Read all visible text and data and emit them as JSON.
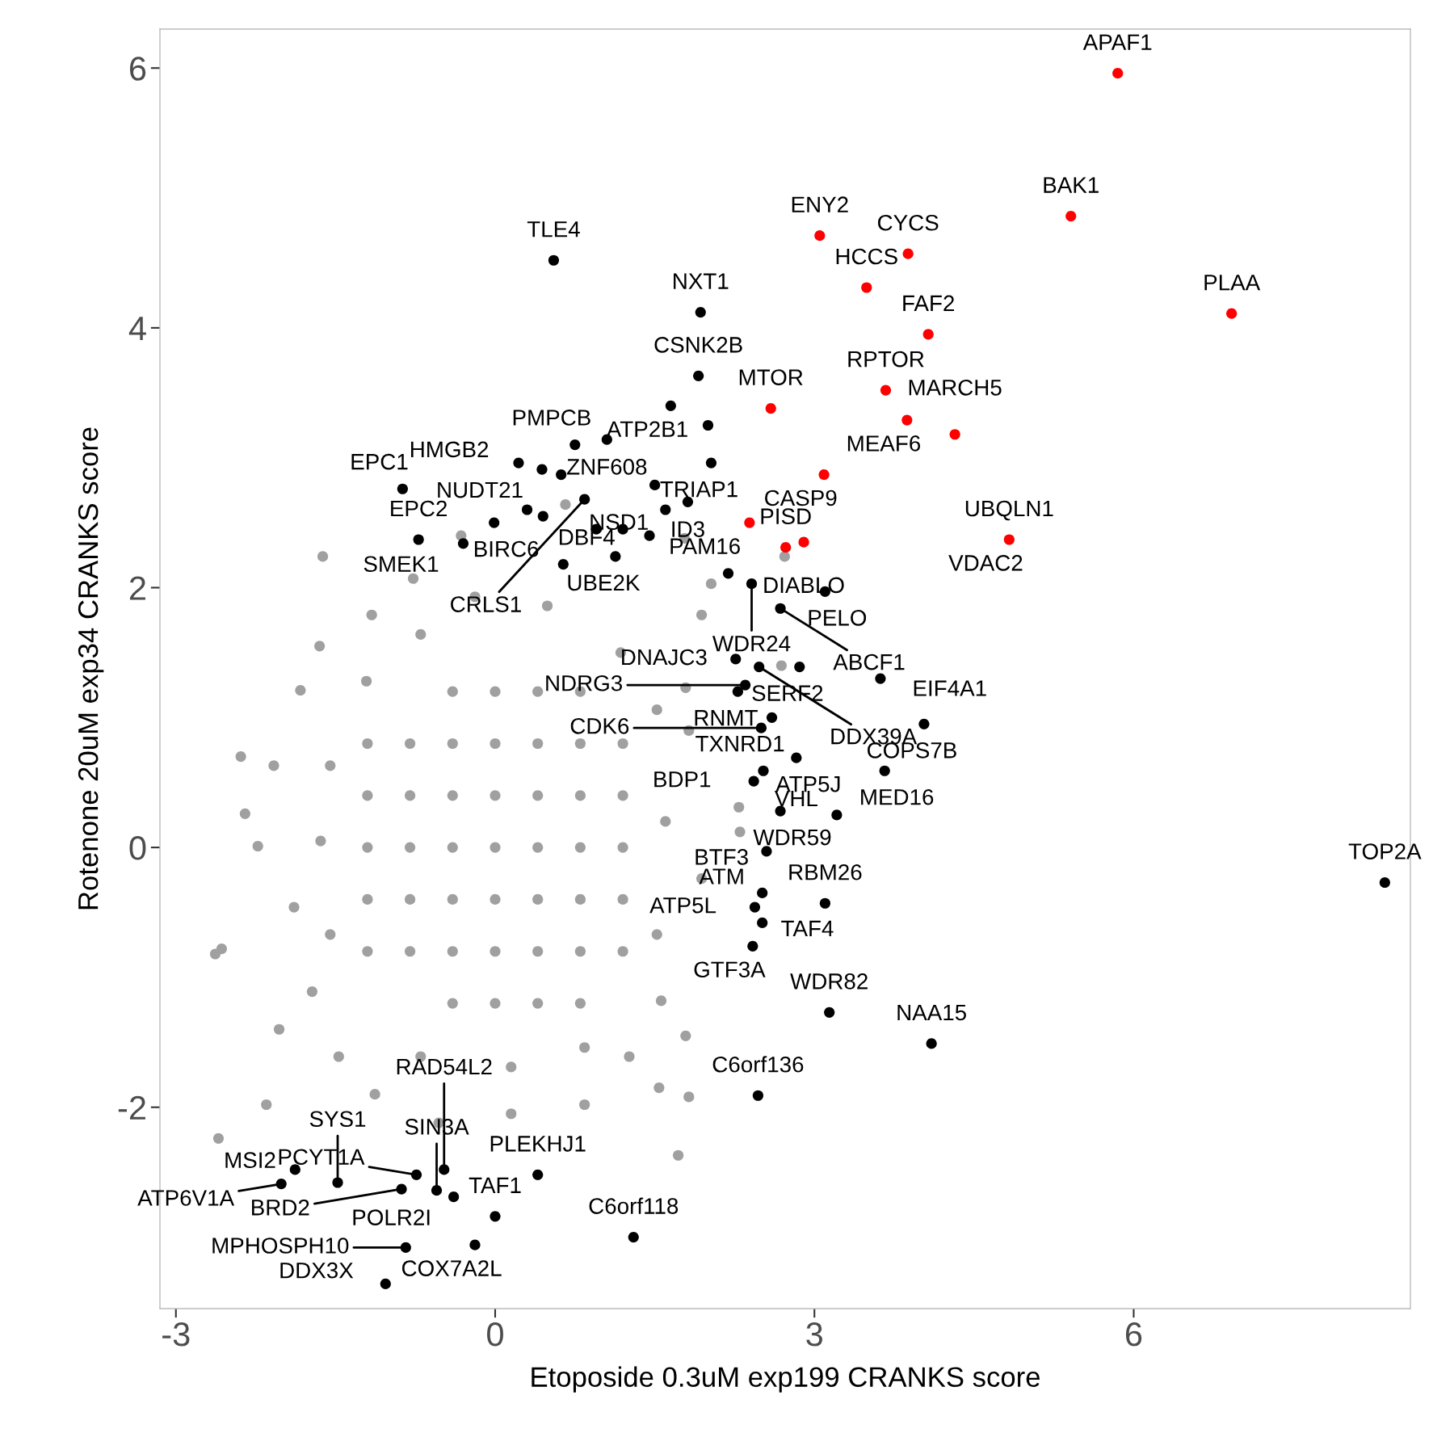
{
  "chart_data": {
    "type": "scatter",
    "xlabel": "Etoposide 0.3uM exp199 CRANKS score",
    "ylabel": "Rotenone 20uM exp34 CRANKS score",
    "xlim": [
      -3.15,
      8.6
    ],
    "ylim": [
      -3.55,
      6.3
    ],
    "xticks": [
      -3,
      0,
      3,
      6
    ],
    "yticks": [
      -2,
      0,
      2,
      4,
      6
    ],
    "grid": false,
    "legend": false,
    "marker": "circle",
    "series": [
      {
        "color": "#a0a0a0",
        "x": [
          -1.62,
          -2.63,
          -2.57,
          -2.39,
          -2.6,
          -2.35,
          -2.23,
          -2.15,
          -2.03,
          1.72,
          1.82,
          1.54,
          1.79,
          1.56,
          1.94,
          2.3,
          2.29,
          1.82,
          1.79,
          1.94,
          2.03,
          1.78,
          2.69,
          2.72,
          0.66,
          -0.32,
          -0.77,
          -1.16,
          -1.65,
          -1.83,
          -2.08,
          -1.89,
          -1.72,
          -1.47,
          -1.13,
          -0.53,
          0.15,
          0.84,
          1.26,
          1.52,
          1.6,
          1.52,
          1.18,
          0.49,
          -0.19,
          -0.7,
          -1.21,
          -1.55,
          -1.64,
          -1.55,
          -0.7,
          0.15,
          0.84,
          -0.8,
          -0.8,
          -0.8,
          -0.8,
          -0.8,
          -0.4,
          -0.4,
          -0.4,
          -0.4,
          -0.4,
          -0.4,
          -0.4,
          0.0,
          0.0,
          0.0,
          0.0,
          0.0,
          0.0,
          0.0,
          0.4,
          0.4,
          0.4,
          0.4,
          0.4,
          0.4,
          0.4,
          0.8,
          0.8,
          0.8,
          0.8,
          0.8,
          0.8,
          0.8,
          1.2,
          1.2,
          1.2,
          1.2,
          1.2,
          -1.2,
          -1.2,
          -1.2,
          -1.2,
          -1.2
        ],
        "values": [
          2.24,
          -0.82,
          -0.78,
          0.7,
          -2.24,
          0.26,
          0.01,
          -1.98,
          -1.4,
          -2.37,
          -1.92,
          -1.85,
          -1.45,
          -1.18,
          -0.24,
          0.12,
          0.31,
          0.9,
          1.23,
          1.79,
          2.03,
          2.38,
          1.4,
          2.24,
          2.64,
          2.4,
          2.07,
          1.79,
          1.55,
          1.21,
          0.63,
          -0.46,
          -1.11,
          -1.61,
          -1.9,
          -2.12,
          -2.05,
          -1.98,
          -1.61,
          -0.67,
          0.2,
          1.06,
          1.5,
          1.86,
          1.93,
          1.64,
          1.28,
          0.63,
          0.05,
          -0.67,
          -1.61,
          -1.69,
          -1.54,
          -0.8,
          -0.4,
          0.0,
          0.4,
          0.8,
          -1.2,
          -0.8,
          -0.4,
          0.0,
          0.4,
          0.8,
          1.2,
          -1.2,
          -0.8,
          -0.4,
          0.0,
          0.4,
          0.8,
          1.2,
          -1.2,
          -0.8,
          -0.4,
          0.0,
          0.4,
          0.8,
          1.2,
          -1.2,
          -0.8,
          -0.4,
          0.0,
          0.4,
          0.8,
          1.2,
          -0.8,
          -0.4,
          0.0,
          0.4,
          0.8,
          -0.8,
          -0.4,
          0.0,
          0.4,
          0.8
        ]
      },
      {
        "color": "#000000",
        "x": [
          0.55,
          1.93,
          1.91,
          1.65,
          1.05,
          0.75,
          0.22,
          0.44,
          0.62,
          2.03,
          1.5,
          -0.87,
          -0.01,
          -0.72,
          -0.3,
          0.84,
          1.81,
          1.13,
          0.64,
          2.41,
          3.1,
          2.68,
          2.19,
          2.26,
          2.86,
          2.48,
          3.62,
          4.03,
          2.28,
          2.83,
          3.66,
          2.52,
          2.43,
          2.68,
          3.21,
          2.55,
          2.51,
          2.44,
          2.51,
          2.42,
          3.1,
          3.14,
          4.1,
          8.36,
          2.47,
          1.3,
          0.0,
          -0.39,
          -0.19,
          -0.74,
          -0.88,
          -0.48,
          -0.55,
          -0.84,
          -1.03,
          -1.48,
          -1.88,
          -2.01,
          0.4,
          2.0,
          1.6,
          1.45,
          1.2,
          0.45,
          0.3,
          0.95,
          2.35,
          2.6,
          2.5
        ],
        "values": [
          4.52,
          4.12,
          3.63,
          3.4,
          3.14,
          3.1,
          2.96,
          2.91,
          2.87,
          2.96,
          2.79,
          2.76,
          2.5,
          2.37,
          2.34,
          2.68,
          2.66,
          2.24,
          2.18,
          2.03,
          1.97,
          1.84,
          2.11,
          1.45,
          1.39,
          1.39,
          1.3,
          0.95,
          1.2,
          0.69,
          0.59,
          0.59,
          0.51,
          0.28,
          0.25,
          -0.03,
          -0.35,
          -0.46,
          -0.58,
          -0.76,
          -0.43,
          -1.27,
          -1.51,
          -0.27,
          -1.91,
          -3.0,
          -2.84,
          -2.69,
          -3.06,
          -2.52,
          -2.63,
          -2.48,
          -2.64,
          -3.08,
          -3.36,
          -2.58,
          -2.48,
          -2.59,
          -2.52,
          3.25,
          2.6,
          2.4,
          2.45,
          2.55,
          2.6,
          2.45,
          1.25,
          1.0,
          0.92
        ]
      },
      {
        "color": "#ff0000",
        "x": [
          5.85,
          5.41,
          3.05,
          3.88,
          3.49,
          6.92,
          4.07,
          3.67,
          2.59,
          3.87,
          4.32,
          3.09,
          2.39,
          2.9,
          2.73,
          4.83
        ],
        "values": [
          5.96,
          4.86,
          4.71,
          4.57,
          4.31,
          4.11,
          3.95,
          3.52,
          3.38,
          3.29,
          3.18,
          2.87,
          2.5,
          2.35,
          2.31,
          2.37
        ]
      }
    ],
    "annotations": [
      {
        "text": "APAF1",
        "x": 5.85,
        "y": 5.96
      },
      {
        "text": "BAK1",
        "x": 5.41,
        "y": 4.86
      },
      {
        "text": "ENY2",
        "x": 3.05,
        "y": 4.71
      },
      {
        "text": "CYCS",
        "x": 3.88,
        "y": 4.57
      },
      {
        "text": "HCCS",
        "x": 3.49,
        "y": 4.31
      },
      {
        "text": "PLAA",
        "x": 6.92,
        "y": 4.11
      },
      {
        "text": "FAF2",
        "x": 4.07,
        "y": 3.95
      },
      {
        "text": "RPTOR",
        "x": 3.67,
        "y": 3.52
      },
      {
        "text": "MTOR",
        "x": 2.59,
        "y": 3.38
      },
      {
        "text": "MEAF6",
        "x": 3.87,
        "y": 3.29
      },
      {
        "text": "MARCH5",
        "x": 4.32,
        "y": 3.18
      },
      {
        "text": "UBQLN1",
        "x": 4.83,
        "y": 2.37
      },
      {
        "text": "CASP9",
        "x": 3.09,
        "y": 2.87
      },
      {
        "text": "PISD",
        "x": 2.73,
        "y": 2.31
      },
      {
        "text": "DIABLO",
        "x": 2.9,
        "y": 2.35
      },
      {
        "text": "VDAC2",
        "x": 4.83,
        "y": 2.37
      },
      {
        "text": "TLE4",
        "x": 0.55,
        "y": 4.52
      },
      {
        "text": "NXT1",
        "x": 1.93,
        "y": 4.12
      },
      {
        "text": "CSNK2B",
        "x": 1.91,
        "y": 3.63
      },
      {
        "text": "ATP2B1",
        "x": 1.65,
        "y": 3.4
      },
      {
        "text": "ZNF608",
        "x": 1.05,
        "y": 3.14
      },
      {
        "text": "PMPCB",
        "x": 0.75,
        "y": 3.1
      },
      {
        "text": "HMGB2",
        "x": 0.22,
        "y": 2.96
      },
      {
        "text": "NUDT21",
        "x": 0.44,
        "y": 2.91
      },
      {
        "text": "TRIAP1",
        "x": 2.03,
        "y": 2.96
      },
      {
        "text": "NSD1",
        "x": 1.5,
        "y": 2.79
      },
      {
        "text": "EPC1",
        "x": -0.87,
        "y": 2.76
      },
      {
        "text": "BIRC6",
        "x": -0.01,
        "y": 2.5
      },
      {
        "text": "EPC2",
        "x": -0.72,
        "y": 2.37
      },
      {
        "text": "SMEK1",
        "x": -0.3,
        "y": 2.34
      },
      {
        "text": "CRLS1",
        "x": 0.84,
        "y": 2.68
      },
      {
        "text": "ID3",
        "x": 1.81,
        "y": 2.66
      },
      {
        "text": "UBE2K",
        "x": 1.13,
        "y": 2.24
      },
      {
        "text": "DBF4",
        "x": 0.64,
        "y": 2.18
      },
      {
        "text": "WDR24",
        "x": 2.41,
        "y": 2.03
      },
      {
        "text": "PELO",
        "x": 3.1,
        "y": 1.97
      },
      {
        "text": "ABCF1",
        "x": 2.68,
        "y": 1.84
      },
      {
        "text": "PAM16",
        "x": 2.19,
        "y": 2.11
      },
      {
        "text": "DNAJC3",
        "x": 2.26,
        "y": 1.45
      },
      {
        "text": "SERF2",
        "x": 2.86,
        "y": 1.39
      },
      {
        "text": "DDX39A",
        "x": 2.48,
        "y": 1.39
      },
      {
        "text": "EIF4A1",
        "x": 3.62,
        "y": 1.3
      },
      {
        "text": "COPS7B",
        "x": 4.03,
        "y": 0.95
      },
      {
        "text": "RNMT",
        "x": 2.28,
        "y": 1.2
      },
      {
        "text": "ATP5J",
        "x": 2.83,
        "y": 0.69
      },
      {
        "text": "MED16",
        "x": 3.66,
        "y": 0.59
      },
      {
        "text": "TXNRD1",
        "x": 2.52,
        "y": 0.59
      },
      {
        "text": "BDP1",
        "x": 2.43,
        "y": 0.51
      },
      {
        "text": "WDR59",
        "x": 2.68,
        "y": 0.28
      },
      {
        "text": "NDRG3",
        "x": 2.35,
        "y": 1.25
      },
      {
        "text": "VHL",
        "x": 3.21,
        "y": 0.25
      },
      {
        "text": "BTF3",
        "x": 2.55,
        "y": -0.03
      },
      {
        "text": "ATM",
        "x": 2.51,
        "y": -0.35
      },
      {
        "text": "ATP5L",
        "x": 2.44,
        "y": -0.46
      },
      {
        "text": "TAF4",
        "x": 2.51,
        "y": -0.58
      },
      {
        "text": "GTF3A",
        "x": 2.42,
        "y": -0.76
      },
      {
        "text": "CDK6",
        "x": 2.5,
        "y": 0.92
      },
      {
        "text": "RBM26",
        "x": 3.1,
        "y": -0.43
      },
      {
        "text": "WDR82",
        "x": 3.14,
        "y": -1.27
      },
      {
        "text": "NAA15",
        "x": 4.1,
        "y": -1.51
      },
      {
        "text": "TOP2A",
        "x": 8.36,
        "y": -0.27
      },
      {
        "text": "C6orf136",
        "x": 2.47,
        "y": -1.91
      },
      {
        "text": "PLEKHJ1",
        "x": 0.4,
        "y": -2.52
      },
      {
        "text": "C6orf118",
        "x": 1.3,
        "y": -3.0
      },
      {
        "text": "TAF1",
        "x": 0.0,
        "y": -2.84
      },
      {
        "text": "POLR2I",
        "x": -0.39,
        "y": -2.69
      },
      {
        "text": "COX7A2L",
        "x": -0.19,
        "y": -3.06
      },
      {
        "text": "MPHOSPH10",
        "x": -0.84,
        "y": -3.08
      },
      {
        "text": "SIN3A",
        "x": -0.55,
        "y": -2.64
      },
      {
        "text": "RAD54L2",
        "x": -0.48,
        "y": -2.48
      },
      {
        "text": "PCYT1A",
        "x": -0.74,
        "y": -2.52
      },
      {
        "text": "BRD2",
        "x": -0.88,
        "y": -2.63
      },
      {
        "text": "DDX3X",
        "x": -1.03,
        "y": -3.36
      },
      {
        "text": "SYS1",
        "x": -1.48,
        "y": -2.58
      },
      {
        "text": "MSI2",
        "x": -1.88,
        "y": -2.48
      },
      {
        "text": "ATP6V1A",
        "x": -2.01,
        "y": -2.59
      }
    ]
  }
}
